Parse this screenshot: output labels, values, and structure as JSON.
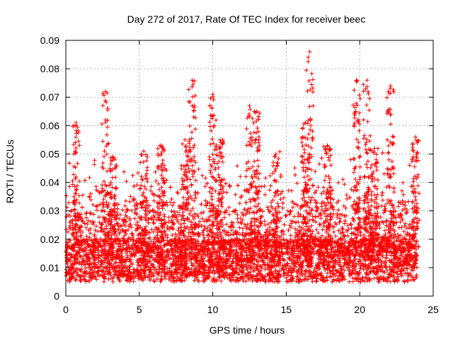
{
  "chart_data": {
    "type": "scatter",
    "title": "Day 272 of 2017, Rate Of TEC Index for receiver beec",
    "xlabel": "GPS time / hours",
    "ylabel": "ROTI / TECUs",
    "xlim": [
      0,
      25
    ],
    "ylim": [
      0,
      0.09
    ],
    "xticks": [
      0,
      5,
      10,
      15,
      20,
      25
    ],
    "yticks": [
      0,
      0.01,
      0.02,
      0.03,
      0.04,
      0.05,
      0.06,
      0.07,
      0.08,
      0.09
    ],
    "xtick_labels": [
      "0",
      "5",
      "10",
      "15",
      "20",
      "25"
    ],
    "ytick_labels": [
      "0",
      "0.01",
      "0.02",
      "0.03",
      "0.04",
      "0.05",
      "0.06",
      "0.07",
      "0.08",
      "0.09"
    ],
    "grid": true,
    "marker": "+",
    "marker_color": "#ff0000",
    "x_data_range": [
      0,
      23.9
    ],
    "typical_y_range": [
      0.005,
      0.02
    ],
    "peaks": [
      {
        "x": 0.7,
        "y": 0.061
      },
      {
        "x": 2.7,
        "y": 0.072
      },
      {
        "x": 3.2,
        "y": 0.049
      },
      {
        "x": 5.3,
        "y": 0.051
      },
      {
        "x": 6.5,
        "y": 0.053
      },
      {
        "x": 8.1,
        "y": 0.055
      },
      {
        "x": 8.6,
        "y": 0.076
      },
      {
        "x": 10.0,
        "y": 0.071
      },
      {
        "x": 10.5,
        "y": 0.055
      },
      {
        "x": 12.5,
        "y": 0.067
      },
      {
        "x": 13.0,
        "y": 0.065
      },
      {
        "x": 14.3,
        "y": 0.05
      },
      {
        "x": 16.3,
        "y": 0.061
      },
      {
        "x": 16.6,
        "y": 0.086
      },
      {
        "x": 17.8,
        "y": 0.053
      },
      {
        "x": 19.8,
        "y": 0.076
      },
      {
        "x": 20.5,
        "y": 0.076
      },
      {
        "x": 21.0,
        "y": 0.052
      },
      {
        "x": 22.1,
        "y": 0.074
      },
      {
        "x": 23.8,
        "y": 0.056
      }
    ]
  }
}
